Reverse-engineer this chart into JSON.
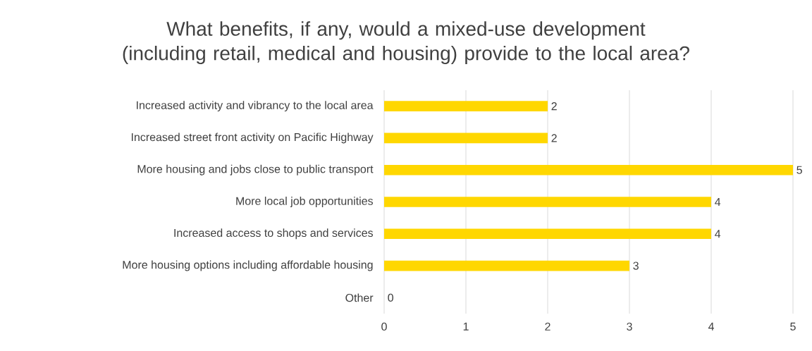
{
  "chart_data": {
    "type": "bar",
    "orientation": "horizontal",
    "title": "What benefits, if any, would a mixed-use development (including retail, medical and housing) provide to the local area?",
    "categories": [
      "Increased activity and vibrancy to the local area",
      "Increased street front activity on Pacific Highway",
      "More housing and jobs close to public transport",
      "More local job opportunities",
      "Increased access to shops and services",
      "More housing options including affordable housing",
      "Other"
    ],
    "values": [
      2,
      2,
      5,
      4,
      4,
      3,
      0
    ],
    "color": "#ffd700",
    "xlim": [
      0,
      5
    ],
    "xticks": [
      0,
      1,
      2,
      3,
      4,
      5
    ],
    "grid": "x",
    "data_labels": true
  }
}
